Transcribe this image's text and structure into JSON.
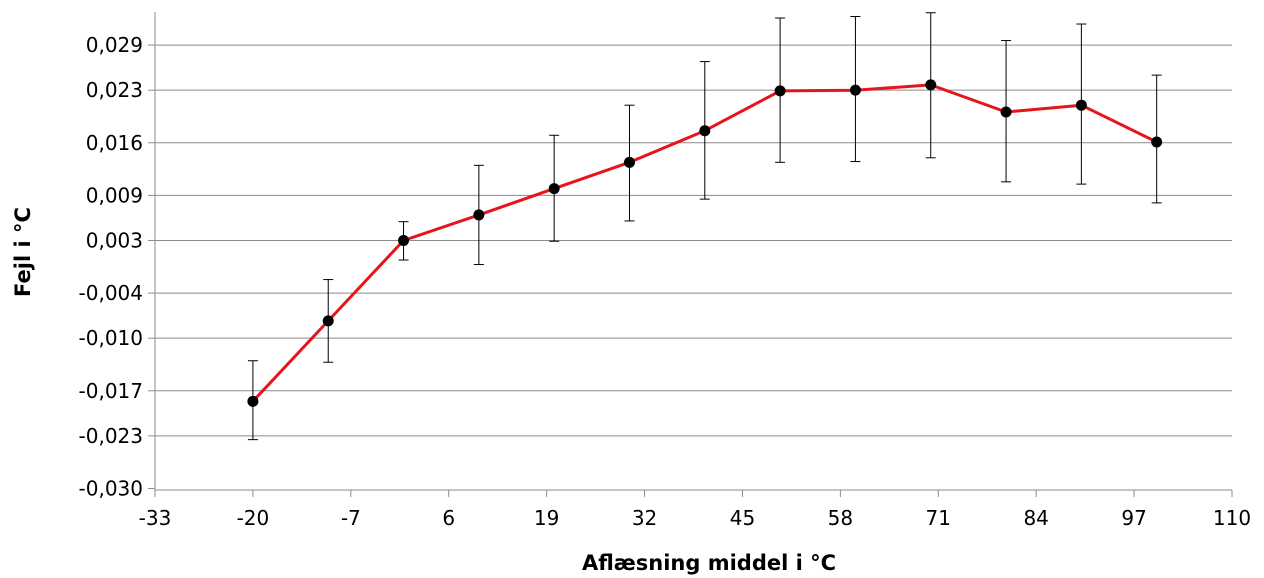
{
  "chart_data": {
    "type": "line",
    "title": "",
    "xlabel": "Aflæsning middel i °C",
    "ylabel": "Fejl i °C",
    "x_ticks": [
      "-33",
      "-20",
      "-7",
      "6",
      "19",
      "32",
      "45",
      "58",
      "71",
      "84",
      "97",
      "110"
    ],
    "y_ticks": [
      "-0,030",
      "-0,023",
      "-0,017",
      "-0,010",
      "-0,004",
      "0,003",
      "0,009",
      "0,016",
      "0,023",
      "0,029"
    ],
    "xlim": [
      -33,
      110
    ],
    "ylim": [
      -0.0302,
      0.0334
    ],
    "grid": "horizontal",
    "legend": "none",
    "series": [
      {
        "color": "#e8141b",
        "marker_color": "#000000",
        "x": [
          -20,
          -10,
          0,
          10,
          20,
          30,
          40,
          50,
          60,
          70,
          80,
          90,
          100
        ],
        "y": [
          -0.0184,
          -0.0077,
          0.003,
          0.0064,
          0.0099,
          0.0134,
          0.0176,
          0.0229,
          0.023,
          0.0237,
          0.0201,
          0.021,
          0.0161
        ],
        "err_low": [
          -0.0235,
          -0.0132,
          0.0004,
          -0.0002,
          0.0029,
          0.0056,
          0.0085,
          0.0134,
          0.0135,
          0.014,
          0.0108,
          0.0105,
          0.008
        ],
        "err_high": [
          -0.013,
          -0.0022,
          0.0055,
          0.013,
          0.017,
          0.021,
          0.0268,
          0.0326,
          0.0328,
          0.0333,
          0.0296,
          0.0318,
          0.025
        ]
      }
    ]
  }
}
